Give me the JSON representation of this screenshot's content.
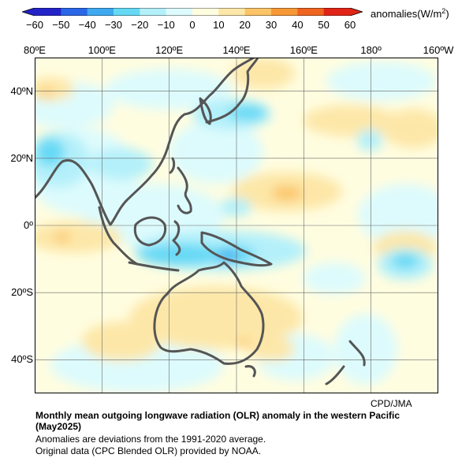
{
  "colorbar": {
    "units_prefix": "anomalies(W/m",
    "units_sup": "2",
    "units_suffix": ")",
    "ticks": [
      "−60",
      "−50",
      "−40",
      "−30",
      "−20",
      "−10",
      "0",
      "10",
      "20",
      "30",
      "40",
      "50",
      "60"
    ],
    "colors": [
      "#2323c8",
      "#2b66e6",
      "#3fa9f0",
      "#66d9f5",
      "#b4f0fa",
      "#ddfbfd",
      "#fffde0",
      "#fde7a8",
      "#fcc466",
      "#f79836",
      "#ef6420",
      "#e02418"
    ]
  },
  "map": {
    "lon_labels": [
      "80ºE",
      "100ºE",
      "120ºE",
      "140ºE",
      "160ºE",
      "180º",
      "160ºW"
    ],
    "lat_labels": [
      "40ºN",
      "20ºN",
      "0º",
      "20ºS",
      "40ºS"
    ],
    "lon_range": [
      80,
      200
    ],
    "lat_range": [
      -50,
      50
    ]
  },
  "credit": "CPD/JMA",
  "caption": {
    "title": "Monthly mean outgoing longwave radiation (OLR) anomaly in the western Pacific (May2025)",
    "line1": "Anomalies are deviations from the 1991-2020 average.",
    "line2": "Original data (CPC Blended OLR) provided by NOAA."
  }
}
